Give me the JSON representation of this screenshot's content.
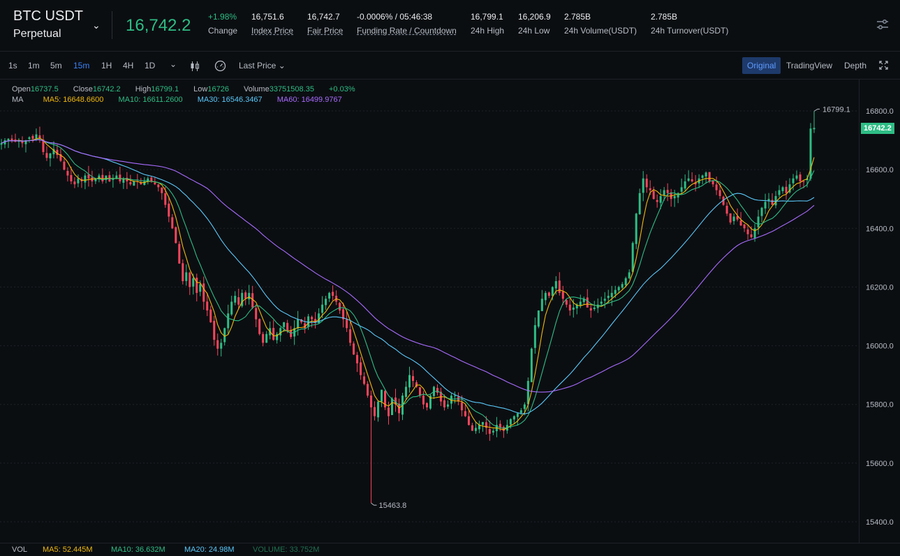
{
  "header": {
    "symbol": "BTC USDT",
    "contract_type": "Perpetual",
    "last_price": "16,742.2",
    "stats": [
      {
        "value": "+1.98%",
        "label": "Change",
        "value_green": true,
        "dashed": false
      },
      {
        "value": "16,751.6",
        "label": "Index Price",
        "value_green": false,
        "dashed": true
      },
      {
        "value": "16,742.7",
        "label": "Fair Price",
        "value_green": false,
        "dashed": true
      },
      {
        "value": "-0.0006% / 05:46:38",
        "label": "Funding Rate / Countdown",
        "value_green": false,
        "dashed": true
      },
      {
        "value": "16,799.1",
        "label": "24h High",
        "value_green": false,
        "dashed": false
      },
      {
        "value": "16,206.9",
        "label": "24h Low",
        "value_green": false,
        "dashed": false
      },
      {
        "value": "2.785B",
        "label": "24h Volume(USDT)",
        "value_green": false,
        "dashed": false
      },
      {
        "value": "2.785B",
        "label": "24h Turnover(USDT)",
        "value_green": false,
        "dashed": false
      }
    ]
  },
  "toolbar": {
    "intervals": [
      "1s",
      "1m",
      "5m",
      "15m",
      "1H",
      "4H",
      "1D"
    ],
    "active_interval": "15m",
    "price_type": "Last Price",
    "views": [
      "Original",
      "TradingView",
      "Depth"
    ],
    "active_view": "Original"
  },
  "candle_info": {
    "open_label": "Open",
    "open": "16737.5",
    "close_label": "Close",
    "close": "16742.2",
    "high_label": "High",
    "high": "16799.1",
    "low_label": "Low",
    "low": "16726",
    "volume_label": "Volume",
    "volume": "33751508.35",
    "change": "+0.03%"
  },
  "ma_info": {
    "label": "MA",
    "ma5": "MA5: 16648.6600",
    "ma10": "MA10: 16611.2600",
    "ma30": "MA30: 16546.3467",
    "ma60": "MA60: 16499.9767"
  },
  "volume_info": {
    "label": "VOL",
    "ma5": "MA5: 52.445M",
    "ma10": "MA10: 36.632M",
    "ma20": "MA20: 24.98M",
    "volume": "VOLUME: 33.752M"
  },
  "current_price_tag": "16742.2",
  "colors": {
    "up": "#2ebd85",
    "down": "#f6465d",
    "ma5": "#f0b90b",
    "ma10": "#2ebd85",
    "ma30": "#5ac8fa",
    "ma60": "#a86bff",
    "accent": "#3b82f6"
  },
  "chart_data": {
    "type": "candlestick",
    "y_ticks": [
      "16800.0",
      "16600.0",
      "16400.0",
      "16200.0",
      "16000.0",
      "15800.0",
      "15600.0",
      "15400.0"
    ],
    "y_tick_values": [
      16800,
      16600,
      16400,
      16200,
      16000,
      15800,
      15600,
      15400
    ],
    "ylim": [
      15370,
      16950
    ],
    "high_label": "16799.1",
    "low_label": "15463.8",
    "series": [
      {
        "name": "MA5",
        "color": "#f0b90b"
      },
      {
        "name": "MA10",
        "color": "#2ebd85"
      },
      {
        "name": "MA30",
        "color": "#5ac8fa"
      },
      {
        "name": "MA60",
        "color": "#a86bff"
      }
    ],
    "close_path": [
      16690,
      16700,
      16705,
      16700,
      16695,
      16700,
      16690,
      16700,
      16710,
      16705,
      16720,
      16705,
      16660,
      16640,
      16655,
      16670,
      16650,
      16630,
      16600,
      16580,
      16560,
      16550,
      16570,
      16560,
      16580,
      16570,
      16560,
      16570,
      16580,
      16560,
      16580,
      16560,
      16570,
      16580,
      16560,
      16570,
      16560,
      16550,
      16560,
      16560,
      16550,
      16560,
      16570,
      16560,
      16550,
      16540,
      16520,
      16480,
      16440,
      16400,
      16350,
      16280,
      16220,
      16250,
      16200,
      16230,
      16180,
      16210,
      16150,
      16120,
      16080,
      16020,
      15990,
      16010,
      16060,
      16110,
      16150,
      16170,
      16140,
      16180,
      16160,
      16180,
      16130,
      16090,
      16040,
      16010,
      16040,
      16060,
      16020,
      16040,
      16060,
      16080,
      16050,
      16030,
      16060,
      16090,
      16080,
      16060,
      16100,
      16090,
      16080,
      16110,
      16140,
      16160,
      16180,
      16170,
      16150,
      16120,
      16090,
      16060,
      16010,
      15970,
      15940,
      15900,
      15870,
      15830,
      15790,
      15760,
      15810,
      15850,
      15790,
      15760,
      15820,
      15800,
      15770,
      15830,
      15860,
      15900,
      15880,
      15860,
      15830,
      15800,
      15790,
      15830,
      15860,
      15840,
      15810,
      15790,
      15800,
      15830,
      15830,
      15810,
      15780,
      15760,
      15730,
      15710,
      15720,
      15730,
      15740,
      15720,
      15700,
      15710,
      15730,
      15720,
      15710,
      15730,
      15750,
      15760,
      15770,
      15780,
      15800,
      15880,
      15990,
      16070,
      16120,
      16160,
      16180,
      16170,
      16200,
      16220,
      16180,
      16160,
      16140,
      16120,
      16130,
      16140,
      16150,
      16160,
      16130,
      16120,
      16130,
      16140,
      16150,
      16160,
      16170,
      16180,
      16190,
      16200,
      16210,
      16230,
      16250,
      16350,
      16450,
      16520,
      16570,
      16540,
      16530,
      16500,
      16490,
      16510,
      16530,
      16520,
      16500,
      16510,
      16520,
      16540,
      16560,
      16570,
      16560,
      16550,
      16570,
      16580,
      16590,
      16560,
      16550,
      16530,
      16510,
      16480,
      16450,
      16420,
      16440,
      16430,
      16410,
      16400,
      16380,
      16370,
      16400,
      16440,
      16470,
      16490,
      16500,
      16480,
      16510,
      16530,
      16540,
      16520,
      16550,
      16570,
      16580,
      16560,
      16560,
      16570,
      16740,
      16780
    ]
  }
}
